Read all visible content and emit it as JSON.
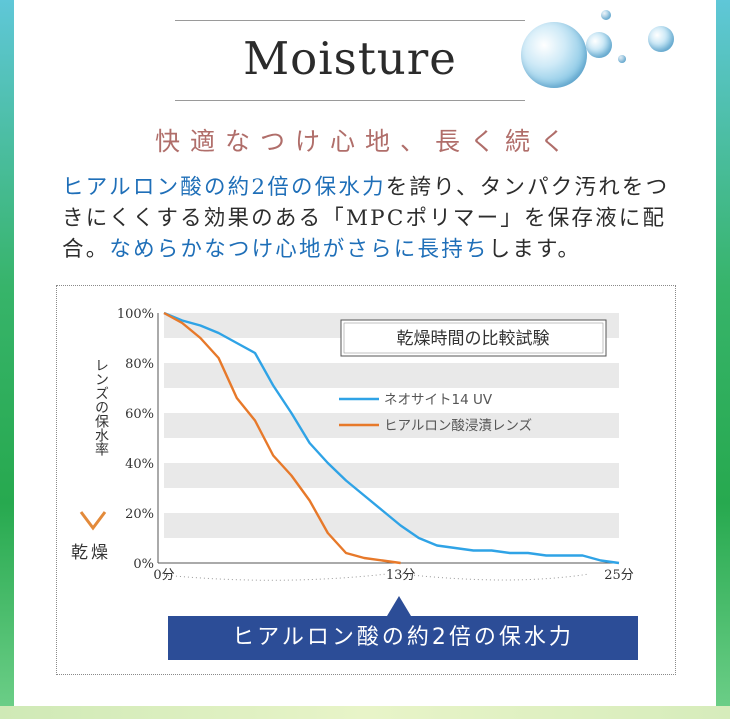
{
  "title": "Moisture",
  "subtitle": "快適なつけ心地、長く続く",
  "body": {
    "seg1_hl": "ヒアルロン酸の約2倍の保水力",
    "seg2": "を誇り、タンパク汚れをつきにくくする効果のある「MPCポリマー」を保存液に配合。",
    "seg3_hl": "なめらかなつけ心地がさらに長持ち",
    "seg4": "します。"
  },
  "chart_data": {
    "type": "line",
    "title": "乾燥時間の比較試験",
    "ylabel": "レンズの保水率",
    "y_arrow_label": "乾燥",
    "yticks": [
      "100%",
      "80%",
      "60%",
      "40%",
      "20%",
      "0%"
    ],
    "xticks": [
      "0分",
      "13分",
      "25分"
    ],
    "xlim": [
      0,
      25
    ],
    "ylim": [
      0,
      100
    ],
    "legend_position": "top-right",
    "series": [
      {
        "name": "ネオサイト14 UV",
        "color": "#2fa3e6",
        "x": [
          0,
          1,
          2,
          3,
          4,
          5,
          6,
          7,
          8,
          9,
          10,
          11,
          12,
          13,
          14,
          15,
          16,
          17,
          18,
          19,
          20,
          21,
          22,
          23,
          24,
          25
        ],
        "y": [
          100,
          97,
          95,
          92,
          88,
          84,
          71,
          60,
          48,
          40,
          33,
          27,
          21,
          15,
          10,
          7,
          6,
          5,
          5,
          4,
          4,
          3,
          3,
          3,
          1,
          0
        ]
      },
      {
        "name": "ヒアルロン酸浸漬レンズ",
        "color": "#e7792a",
        "x": [
          0,
          1,
          2,
          3,
          4,
          5,
          6,
          7,
          8,
          9,
          10,
          11,
          12,
          13
        ],
        "y": [
          100,
          96,
          90,
          82,
          66,
          57,
          43,
          35,
          25,
          12,
          4,
          2,
          1,
          0
        ]
      }
    ]
  },
  "banner": "ヒアルロン酸の約2倍の保水力",
  "colors": {
    "accent_blue": "#2c4d97",
    "highlight_text": "#1f6fb8",
    "subtitle": "#b06e6a"
  }
}
